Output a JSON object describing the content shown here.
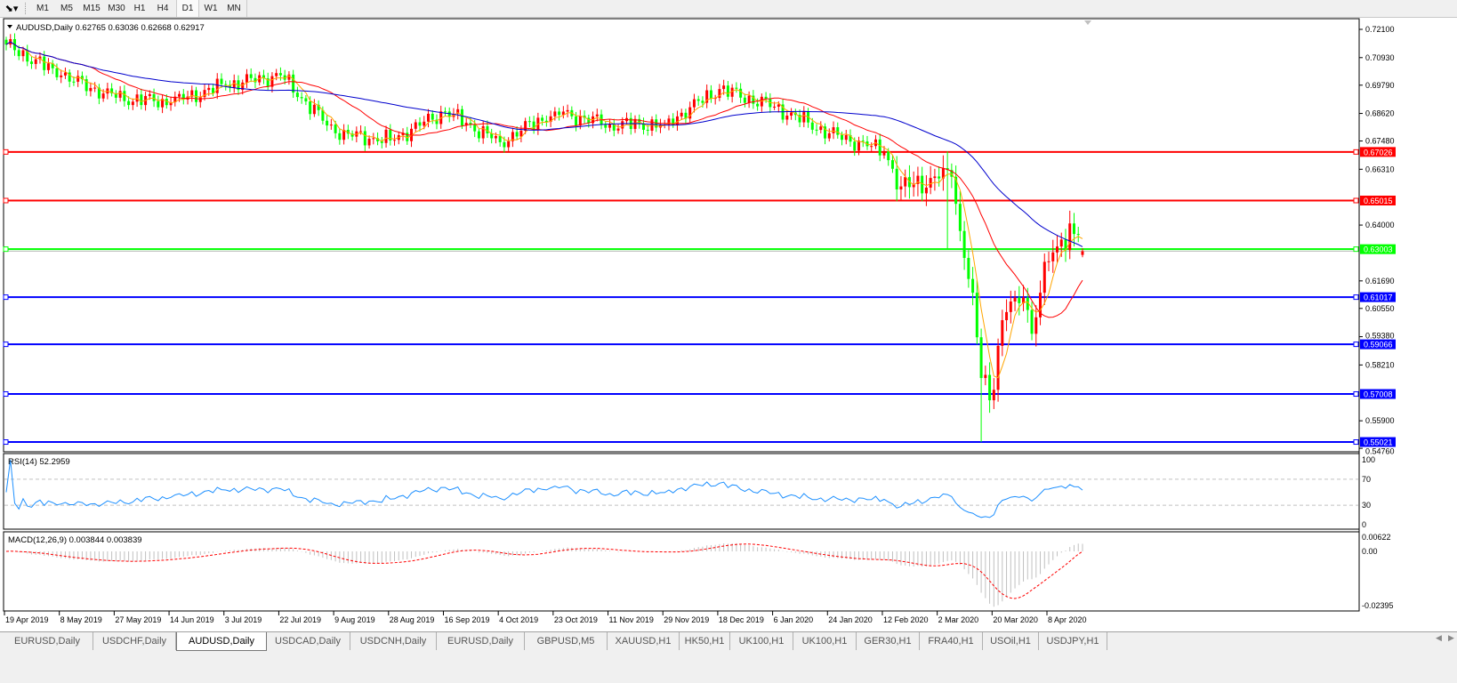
{
  "toolbar": {
    "tool_icon": "line-tools-icon",
    "timeframes": [
      "M1",
      "M5",
      "M15",
      "M30",
      "H1",
      "H4",
      "D1",
      "W1",
      "MN"
    ],
    "active_timeframe": "D1"
  },
  "chart": {
    "header": "AUDUSD,Daily  0.62765 0.63036 0.62668 0.62917",
    "colors": {
      "bull": "#ff0000",
      "bear": "#00ff00",
      "ma_fast": "#ffa500",
      "ma_mid": "#ff0000",
      "ma_slow": "#0000cd",
      "rsi": "#1e90ff",
      "macd_hist": "#c0c0c0",
      "macd_signal": "#ff0000",
      "bid_line": "#c0c0c0"
    },
    "price_ticks": [
      "0.72100",
      "0.70930",
      "0.69790",
      "0.68620",
      "0.67480",
      "0.66310",
      "0.64000",
      "0.61690",
      "0.60550",
      "0.59380",
      "0.58210",
      "0.55900",
      "0.54760"
    ],
    "levels": [
      {
        "price": "0.67026",
        "color": "#ff0000"
      },
      {
        "price": "0.65015",
        "color": "#ff0000"
      },
      {
        "price": "0.63003",
        "color": "#00ff00"
      },
      {
        "price": "0.61017",
        "color": "#0000ff"
      },
      {
        "price": "0.59066",
        "color": "#0000ff"
      },
      {
        "price": "0.57008",
        "color": "#0000ff"
      },
      {
        "price": "0.55021",
        "color": "#0000ff"
      }
    ],
    "date_labels": [
      "19 Apr 2019",
      "8 May 2019",
      "27 May 2019",
      "14 Jun 2019",
      "3 Jul 2019",
      "22 Jul 2019",
      "9 Aug 2019",
      "28 Aug 2019",
      "16 Sep 2019",
      "4 Oct 2019",
      "23 Oct 2019",
      "11 Nov 2019",
      "29 Nov 2019",
      "18 Dec 2019",
      "6 Jan 2020",
      "24 Jan 2020",
      "12 Feb 2020",
      "2 Mar 2020",
      "20 Mar 2020",
      "8 Apr 2020"
    ]
  },
  "chart_data": {
    "type": "candlestick",
    "symbol": "AUDUSD",
    "timeframe": "Daily",
    "last_bar": {
      "open": 0.62765,
      "high": 0.63036,
      "low": 0.62668,
      "close": 0.62917
    },
    "ylim": [
      0.5476,
      0.721
    ],
    "approx_closes": [
      [
        0,
        0.7147
      ],
      [
        13,
        0.7019
      ],
      [
        26,
        0.6927
      ],
      [
        39,
        0.6908
      ],
      [
        52,
        0.698
      ],
      [
        65,
        0.702
      ],
      [
        78,
        0.678
      ],
      [
        91,
        0.675
      ],
      [
        104,
        0.687
      ],
      [
        117,
        0.6743
      ],
      [
        130,
        0.687
      ],
      [
        143,
        0.6816
      ],
      [
        156,
        0.6816
      ],
      [
        169,
        0.6963
      ],
      [
        182,
        0.689
      ],
      [
        195,
        0.678
      ],
      [
        208,
        0.6706
      ],
      [
        212,
        0.656
      ],
      [
        219,
        0.6595
      ],
      [
        224,
        0.66
      ],
      [
        227,
        0.6264
      ],
      [
        229,
        0.612
      ],
      [
        231,
        0.5767
      ],
      [
        232,
        0.578
      ],
      [
        233,
        0.5675
      ],
      [
        235,
        0.59
      ],
      [
        237,
        0.604
      ],
      [
        239,
        0.61
      ],
      [
        241,
        0.61
      ],
      [
        243,
        0.595
      ],
      [
        245,
        0.612
      ],
      [
        247,
        0.625
      ],
      [
        250,
        0.634
      ],
      [
        254,
        0.636
      ],
      [
        255,
        0.62917
      ]
    ],
    "extreme_low": 0.5502
  },
  "rsi": {
    "label": "RSI(14) 52.2959",
    "ticks": [
      "100",
      "70",
      "30",
      "0"
    ]
  },
  "macd": {
    "label": "MACD(12,26,9) 0.003844 0.003839",
    "ticks": [
      "0.00622",
      "0.00",
      "-0.02395"
    ]
  },
  "tabs": [
    "EURUSD,Daily",
    "USDCHF,Daily",
    "AUDUSD,Daily",
    "USDCAD,Daily",
    "USDCNH,Daily",
    "EURUSD,Daily",
    "GBPUSD,M5",
    "XAUUSD,H1",
    "HK50,H1",
    "UK100,H1",
    "UK100,H1",
    "GER30,H1",
    "FRA40,H1",
    "USOil,H1",
    "USDJPY,H1"
  ],
  "active_tab": "AUDUSD,Daily"
}
